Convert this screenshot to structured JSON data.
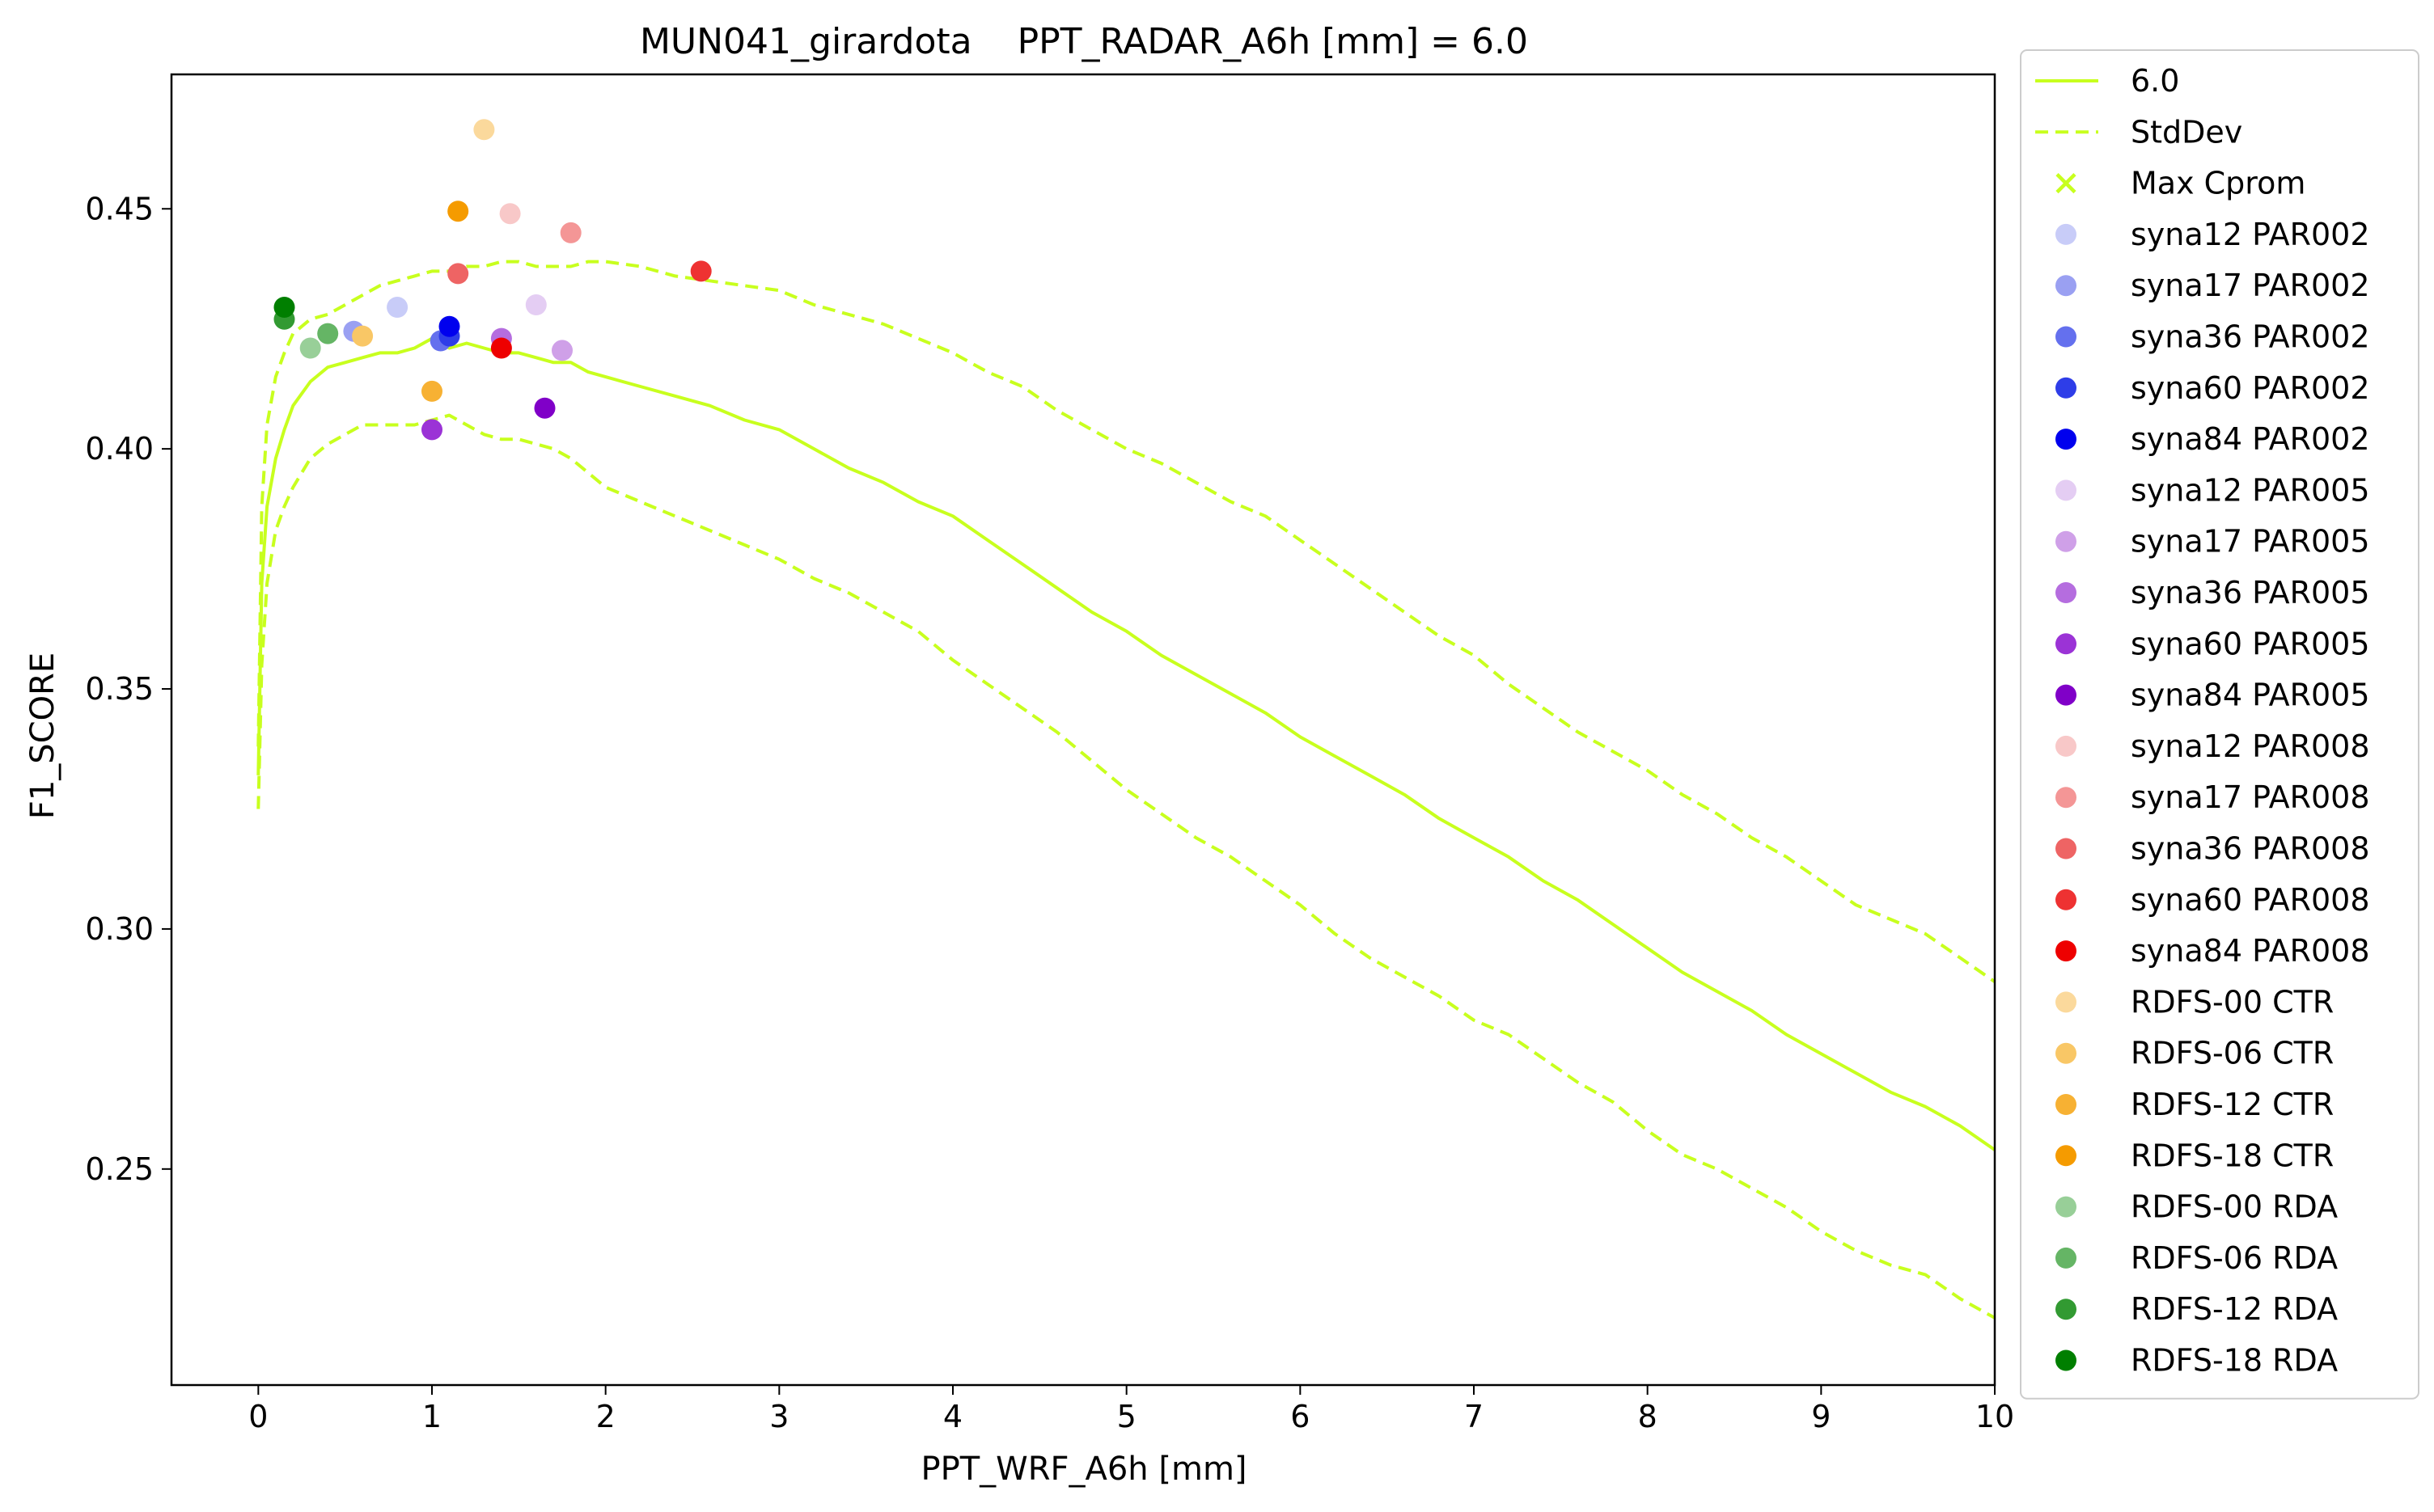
{
  "chart_data": {
    "type": "scatter",
    "title": "MUN041_girardota    PPT_RADAR_A6h [mm] = 6.0",
    "xlabel": "PPT_WRF_A6h [mm]",
    "ylabel": "F1_SCORE",
    "xlim": [
      -0.5,
      10
    ],
    "ylim": [
      0.205,
      0.478
    ],
    "xticks": [
      0,
      1,
      2,
      3,
      4,
      5,
      6,
      7,
      8,
      9,
      10
    ],
    "yticks": [
      0.25,
      0.3,
      0.35,
      0.4,
      0.45
    ],
    "ytick_labels": [
      "0.25",
      "0.30",
      "0.35",
      "0.40",
      "0.45"
    ],
    "grid": false,
    "legend_position": "outside-right",
    "line_color": "#c8ff1e",
    "series": [
      {
        "name": "6.0",
        "kind": "line",
        "style": "solid",
        "x": [
          0,
          0.02,
          0.05,
          0.1,
          0.15,
          0.2,
          0.3,
          0.4,
          0.5,
          0.6,
          0.7,
          0.8,
          0.9,
          1.0,
          1.1,
          1.2,
          1.3,
          1.4,
          1.5,
          1.6,
          1.7,
          1.8,
          1.9,
          2.0,
          2.2,
          2.4,
          2.6,
          2.8,
          3.0,
          3.2,
          3.4,
          3.6,
          3.8,
          4.0,
          4.2,
          4.4,
          4.6,
          4.8,
          5.0,
          5.2,
          5.4,
          5.6,
          5.8,
          6.0,
          6.2,
          6.4,
          6.6,
          6.8,
          7.0,
          7.2,
          7.4,
          7.6,
          7.8,
          8.0,
          8.2,
          8.4,
          8.6,
          8.8,
          9.0,
          9.2,
          9.4,
          9.6,
          9.8,
          10.0
        ],
        "y": [
          0.332,
          0.372,
          0.388,
          0.398,
          0.404,
          0.409,
          0.414,
          0.417,
          0.418,
          0.419,
          0.42,
          0.42,
          0.421,
          0.423,
          0.421,
          0.422,
          0.421,
          0.42,
          0.42,
          0.419,
          0.418,
          0.418,
          0.416,
          0.415,
          0.413,
          0.411,
          0.409,
          0.406,
          0.404,
          0.4,
          0.396,
          0.393,
          0.389,
          0.386,
          0.381,
          0.376,
          0.371,
          0.366,
          0.362,
          0.357,
          0.353,
          0.349,
          0.345,
          0.34,
          0.336,
          0.332,
          0.328,
          0.323,
          0.319,
          0.315,
          0.31,
          0.306,
          0.301,
          0.296,
          0.291,
          0.287,
          0.283,
          0.278,
          0.274,
          0.27,
          0.266,
          0.263,
          0.259,
          0.254
        ]
      },
      {
        "name": "StdDev",
        "kind": "line",
        "style": "dashed",
        "x": [
          0,
          0.02,
          0.05,
          0.1,
          0.15,
          0.2,
          0.3,
          0.4,
          0.5,
          0.6,
          0.7,
          0.8,
          0.9,
          1.0,
          1.1,
          1.2,
          1.3,
          1.4,
          1.5,
          1.6,
          1.7,
          1.8,
          1.9,
          2.0,
          2.2,
          2.4,
          2.6,
          2.8,
          3.0,
          3.2,
          3.4,
          3.6,
          3.8,
          4.0,
          4.2,
          4.4,
          4.6,
          4.8,
          5.0,
          5.2,
          5.4,
          5.6,
          5.8,
          6.0,
          6.2,
          6.4,
          6.6,
          6.8,
          7.0,
          7.2,
          7.4,
          7.6,
          7.8,
          8.0,
          8.2,
          8.4,
          8.6,
          8.8,
          9.0,
          9.2,
          9.4,
          9.6,
          9.8,
          10.0
        ],
        "y": [
          0.338,
          0.388,
          0.405,
          0.415,
          0.42,
          0.424,
          0.427,
          0.428,
          0.43,
          0.432,
          0.434,
          0.435,
          0.436,
          0.437,
          0.437,
          0.438,
          0.438,
          0.439,
          0.439,
          0.438,
          0.438,
          0.438,
          0.439,
          0.439,
          0.438,
          0.436,
          0.435,
          0.434,
          0.433,
          0.43,
          0.428,
          0.426,
          0.423,
          0.42,
          0.416,
          0.413,
          0.408,
          0.404,
          0.4,
          0.397,
          0.393,
          0.389,
          0.386,
          0.381,
          0.376,
          0.371,
          0.366,
          0.361,
          0.357,
          0.351,
          0.346,
          0.341,
          0.337,
          0.333,
          0.328,
          0.324,
          0.319,
          0.315,
          0.31,
          0.305,
          0.302,
          0.299,
          0.294,
          0.289
        ]
      },
      {
        "name": "StdDev-lower",
        "kind": "line",
        "style": "dashed",
        "x": [
          0,
          0.02,
          0.05,
          0.1,
          0.15,
          0.2,
          0.3,
          0.4,
          0.5,
          0.6,
          0.7,
          0.8,
          0.9,
          1.0,
          1.1,
          1.2,
          1.3,
          1.4,
          1.5,
          1.6,
          1.7,
          1.8,
          1.9,
          2.0,
          2.2,
          2.4,
          2.6,
          2.8,
          3.0,
          3.2,
          3.4,
          3.6,
          3.8,
          4.0,
          4.2,
          4.4,
          4.6,
          4.8,
          5.0,
          5.2,
          5.4,
          5.6,
          5.8,
          6.0,
          6.2,
          6.4,
          6.6,
          6.8,
          7.0,
          7.2,
          7.4,
          7.6,
          7.8,
          8.0,
          8.2,
          8.4,
          8.6,
          8.8,
          9.0,
          9.2,
          9.4,
          9.6,
          9.8,
          10.0
        ],
        "y": [
          0.325,
          0.355,
          0.372,
          0.383,
          0.388,
          0.392,
          0.398,
          0.401,
          0.403,
          0.405,
          0.405,
          0.405,
          0.405,
          0.406,
          0.407,
          0.405,
          0.403,
          0.402,
          0.402,
          0.401,
          0.4,
          0.398,
          0.395,
          0.392,
          0.389,
          0.386,
          0.383,
          0.38,
          0.377,
          0.373,
          0.37,
          0.366,
          0.362,
          0.356,
          0.351,
          0.346,
          0.341,
          0.335,
          0.329,
          0.324,
          0.319,
          0.315,
          0.31,
          0.305,
          0.299,
          0.294,
          0.29,
          0.286,
          0.281,
          0.278,
          0.273,
          0.268,
          0.264,
          0.258,
          0.253,
          0.25,
          0.246,
          0.242,
          0.237,
          0.233,
          0.23,
          0.228,
          0.223,
          0.219
        ]
      }
    ],
    "max_cprom": {
      "name": "Max Cprom",
      "marker": "x",
      "color": "#c8ff1e",
      "points": []
    },
    "scatter_points": [
      {
        "name": "syna12 PAR002",
        "color": "#c8ccf8",
        "x": 0.8,
        "y": 0.4295
      },
      {
        "name": "syna17 PAR002",
        "color": "#9aa0f2",
        "x": 0.55,
        "y": 0.4245
      },
      {
        "name": "syna36 PAR002",
        "color": "#6470ee",
        "x": 1.05,
        "y": 0.4225
      },
      {
        "name": "syna60 PAR002",
        "color": "#2e3de8",
        "x": 1.1,
        "y": 0.4235
      },
      {
        "name": "syna84 PAR002",
        "color": "#0000ee",
        "x": 1.1,
        "y": 0.4255
      },
      {
        "name": "syna12 PAR005",
        "color": "#e4cdf3",
        "x": 1.6,
        "y": 0.43
      },
      {
        "name": "syna17 PAR005",
        "color": "#cfa0e8",
        "x": 1.75,
        "y": 0.4205
      },
      {
        "name": "syna36 PAR005",
        "color": "#b56ddf",
        "x": 1.4,
        "y": 0.423
      },
      {
        "name": "syna60 PAR005",
        "color": "#9b33d6",
        "x": 1.0,
        "y": 0.404
      },
      {
        "name": "syna84 PAR005",
        "color": "#8000c8",
        "x": 1.65,
        "y": 0.4085
      },
      {
        "name": "syna12 PAR008",
        "color": "#f8c8c8",
        "x": 1.45,
        "y": 0.449
      },
      {
        "name": "syna17 PAR008",
        "color": "#f49696",
        "x": 1.8,
        "y": 0.445
      },
      {
        "name": "syna36 PAR008",
        "color": "#ee6464",
        "x": 1.15,
        "y": 0.4365
      },
      {
        "name": "syna60 PAR008",
        "color": "#ee3232",
        "x": 2.55,
        "y": 0.437
      },
      {
        "name": "syna84 PAR008",
        "color": "#ee0000",
        "x": 1.4,
        "y": 0.421
      },
      {
        "name": "RDFS-00 CTR",
        "color": "#fbd99c",
        "x": 1.3,
        "y": 0.4665
      },
      {
        "name": "RDFS-06 CTR",
        "color": "#f9c766",
        "x": 0.6,
        "y": 0.4235
      },
      {
        "name": "RDFS-12 CTR",
        "color": "#f7b133",
        "x": 1.0,
        "y": 0.412
      },
      {
        "name": "RDFS-18 CTR",
        "color": "#f59b00",
        "x": 1.15,
        "y": 0.4495
      },
      {
        "name": "RDFS-00 RDA",
        "color": "#98cf98",
        "x": 0.3,
        "y": 0.421
      },
      {
        "name": "RDFS-06 RDA",
        "color": "#65b565",
        "x": 0.4,
        "y": 0.424
      },
      {
        "name": "RDFS-12 RDA",
        "color": "#329a32",
        "x": 0.15,
        "y": 0.427
      },
      {
        "name": "RDFS-18 RDA",
        "color": "#007f00",
        "x": 0.15,
        "y": 0.4295
      }
    ],
    "legend": [
      {
        "label": "6.0",
        "kind": "line",
        "color": "#c8ff1e"
      },
      {
        "label": "StdDev",
        "kind": "dashed",
        "color": "#c8ff1e"
      },
      {
        "label": "Max Cprom",
        "kind": "x",
        "color": "#c8ff1e"
      },
      {
        "label": "syna12 PAR002",
        "kind": "dot",
        "color": "#c8ccf8"
      },
      {
        "label": "syna17 PAR002",
        "kind": "dot",
        "color": "#9aa0f2"
      },
      {
        "label": "syna36 PAR002",
        "kind": "dot",
        "color": "#6470ee"
      },
      {
        "label": "syna60 PAR002",
        "kind": "dot",
        "color": "#2e3de8"
      },
      {
        "label": "syna84 PAR002",
        "kind": "dot",
        "color": "#0000ee"
      },
      {
        "label": "syna12 PAR005",
        "kind": "dot",
        "color": "#e4cdf3"
      },
      {
        "label": "syna17 PAR005",
        "kind": "dot",
        "color": "#cfa0e8"
      },
      {
        "label": "syna36 PAR005",
        "kind": "dot",
        "color": "#b56ddf"
      },
      {
        "label": "syna60 PAR005",
        "kind": "dot",
        "color": "#9b33d6"
      },
      {
        "label": "syna84 PAR005",
        "kind": "dot",
        "color": "#8000c8"
      },
      {
        "label": "syna12 PAR008",
        "kind": "dot",
        "color": "#f8c8c8"
      },
      {
        "label": "syna17 PAR008",
        "kind": "dot",
        "color": "#f49696"
      },
      {
        "label": "syna36 PAR008",
        "kind": "dot",
        "color": "#ee6464"
      },
      {
        "label": "syna60 PAR008",
        "kind": "dot",
        "color": "#ee3232"
      },
      {
        "label": "syna84 PAR008",
        "kind": "dot",
        "color": "#ee0000"
      },
      {
        "label": " RDFS-00 CTR",
        "kind": "dot",
        "color": "#fbd99c"
      },
      {
        "label": " RDFS-06 CTR",
        "kind": "dot",
        "color": "#f9c766"
      },
      {
        "label": " RDFS-12 CTR",
        "kind": "dot",
        "color": "#f7b133"
      },
      {
        "label": " RDFS-18 CTR",
        "kind": "dot",
        "color": "#f59b00"
      },
      {
        "label": " RDFS-00 RDA",
        "kind": "dot",
        "color": "#98cf98"
      },
      {
        "label": " RDFS-06 RDA",
        "kind": "dot",
        "color": "#65b565"
      },
      {
        "label": " RDFS-12 RDA",
        "kind": "dot",
        "color": "#329a32"
      },
      {
        "label": " RDFS-18 RDA",
        "kind": "dot",
        "color": "#007f00"
      }
    ]
  }
}
